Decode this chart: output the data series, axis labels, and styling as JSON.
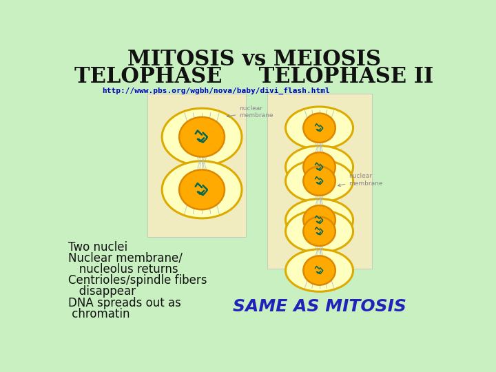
{
  "bg_color": "#c8f0c0",
  "title_line1": "MITOSIS vs MEIOSIS",
  "title_line2": "TELOPHASE     TELOPHASE II",
  "title_color": "#111111",
  "title_fontsize": 22,
  "url_text": "http://www.pbs.org/wgbh/nova/baby/divi_flash.html",
  "url_color": "#0000bb",
  "url_fontsize": 8,
  "left_bullets": [
    "Two nuclei",
    "Nuclear membrane/",
    "   nucleolus returns",
    "Centrioles/spindle fibers",
    "   disappear",
    "DNA spreads out as",
    " chromatin"
  ],
  "bullet_color": "#111111",
  "bullet_fontsize": 12,
  "same_text": "SAME AS MITOSIS",
  "same_color": "#2222bb",
  "same_fontsize": 18,
  "image1_bg": "#f0ecc0",
  "image2_bg": "#f0ecc0",
  "cell_outline": "#ddaa00",
  "cell_outer_fill": "#ffffc0",
  "nucleus_color": "#ffaa00",
  "nucleus_outline": "#dd8800",
  "chromatin_color": "#006655",
  "spindle_color": "#aabbcc",
  "label_color": "#888888"
}
